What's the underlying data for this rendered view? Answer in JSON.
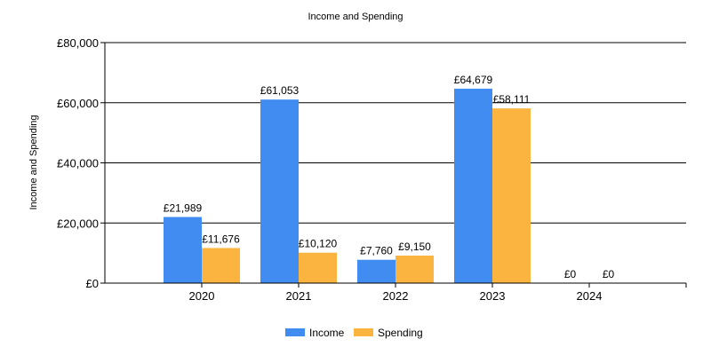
{
  "chart_data": {
    "type": "bar",
    "title": "Income and Spending",
    "xlabel": "",
    "ylabel": "Income and Spending",
    "categories": [
      "2020",
      "2021",
      "2022",
      "2023",
      "2024"
    ],
    "series": [
      {
        "name": "Income",
        "color": "#418CF0",
        "values": [
          21989,
          61053,
          7760,
          64679,
          0
        ],
        "labels": [
          "£21,989",
          "£61,053",
          "£7,760",
          "£64,679",
          "£0"
        ]
      },
      {
        "name": "Spending",
        "color": "#FCB441",
        "values": [
          11676,
          10120,
          9150,
          58111,
          0
        ],
        "labels": [
          "£11,676",
          "£10,120",
          "£9,150",
          "£58,111",
          "£0"
        ]
      }
    ],
    "ylim": [
      0,
      80000
    ],
    "yticks": [
      0,
      20000,
      40000,
      60000,
      80000
    ],
    "ytick_labels": [
      "£0",
      "£20,000",
      "£40,000",
      "£60,000",
      "£80,000"
    ],
    "grid": true,
    "legend_position": "bottom-center"
  }
}
